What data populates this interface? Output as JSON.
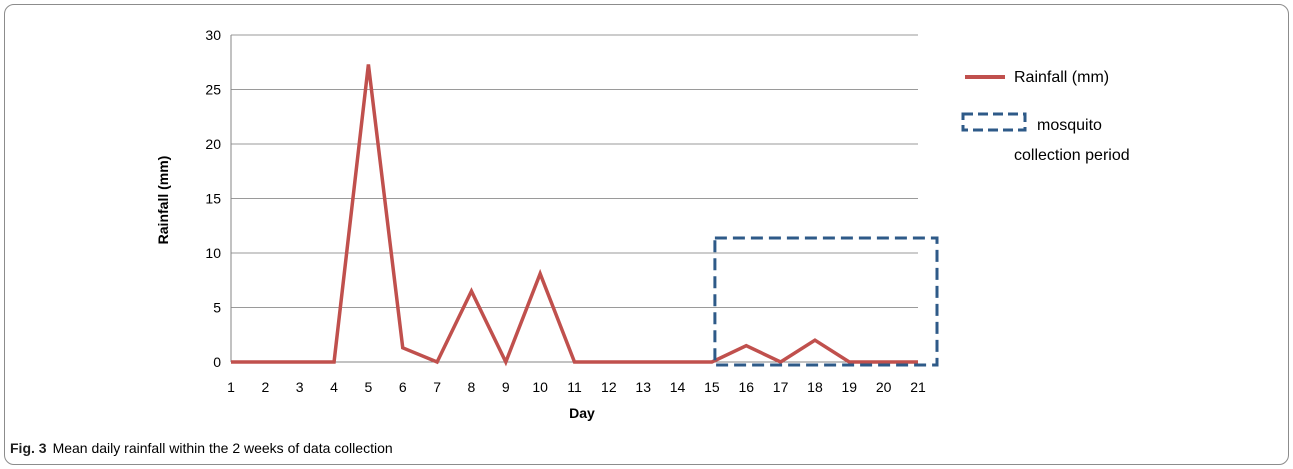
{
  "caption": {
    "label": "Fig. 3",
    "text": "Mean daily rainfall within the 2 weeks of data collection"
  },
  "chart_data": {
    "type": "line",
    "xlabel": "Day",
    "ylabel": "Rainfall (mm)",
    "ylim": [
      0,
      30
    ],
    "y_ticks": [
      0,
      5,
      10,
      15,
      20,
      25,
      30
    ],
    "grid": true,
    "legend_position": "right",
    "categories": [
      "1",
      "2",
      "3",
      "4",
      "5",
      "6",
      "7",
      "8",
      "9",
      "10",
      "11",
      "12",
      "13",
      "14",
      "15",
      "16",
      "17",
      "18",
      "19",
      "20",
      "21"
    ],
    "series": [
      {
        "name": "Rainfall (mm)",
        "color": "#c0504d",
        "values": [
          0,
          0,
          0,
          0,
          27.3,
          1.3,
          0,
          6.5,
          0,
          8.1,
          0,
          0,
          0,
          0,
          0,
          1.5,
          0,
          2,
          0,
          0,
          0
        ]
      }
    ],
    "highlight": {
      "label": "mosquito collection period",
      "label_lines": [
        "mosquito",
        "collection period"
      ],
      "from_day": "15",
      "to_day": "21",
      "color": "#2e5a88"
    }
  }
}
